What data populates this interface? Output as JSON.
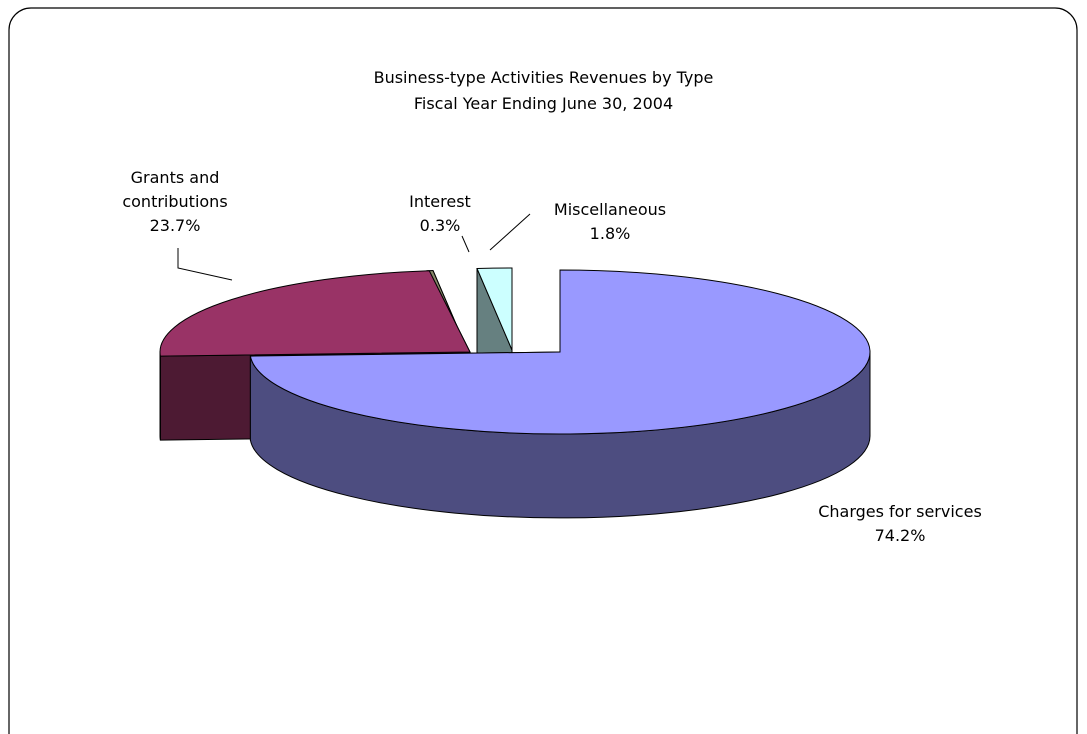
{
  "chart_data": {
    "type": "pie",
    "title": "Business-type Activities Revenues by Type",
    "subtitle": "Fiscal Year Ending June 30, 2004",
    "categories": [
      "Charges for services",
      "Grants and contributions",
      "Interest",
      "Miscellaneous"
    ],
    "values": [
      74.2,
      23.7,
      0.3,
      1.8
    ],
    "value_labels": [
      "74.2%",
      "23.7%",
      "0.3%",
      "1.8%"
    ],
    "colors": [
      "#9999ff",
      "#993366",
      "#878768",
      "#ccffff"
    ]
  }
}
